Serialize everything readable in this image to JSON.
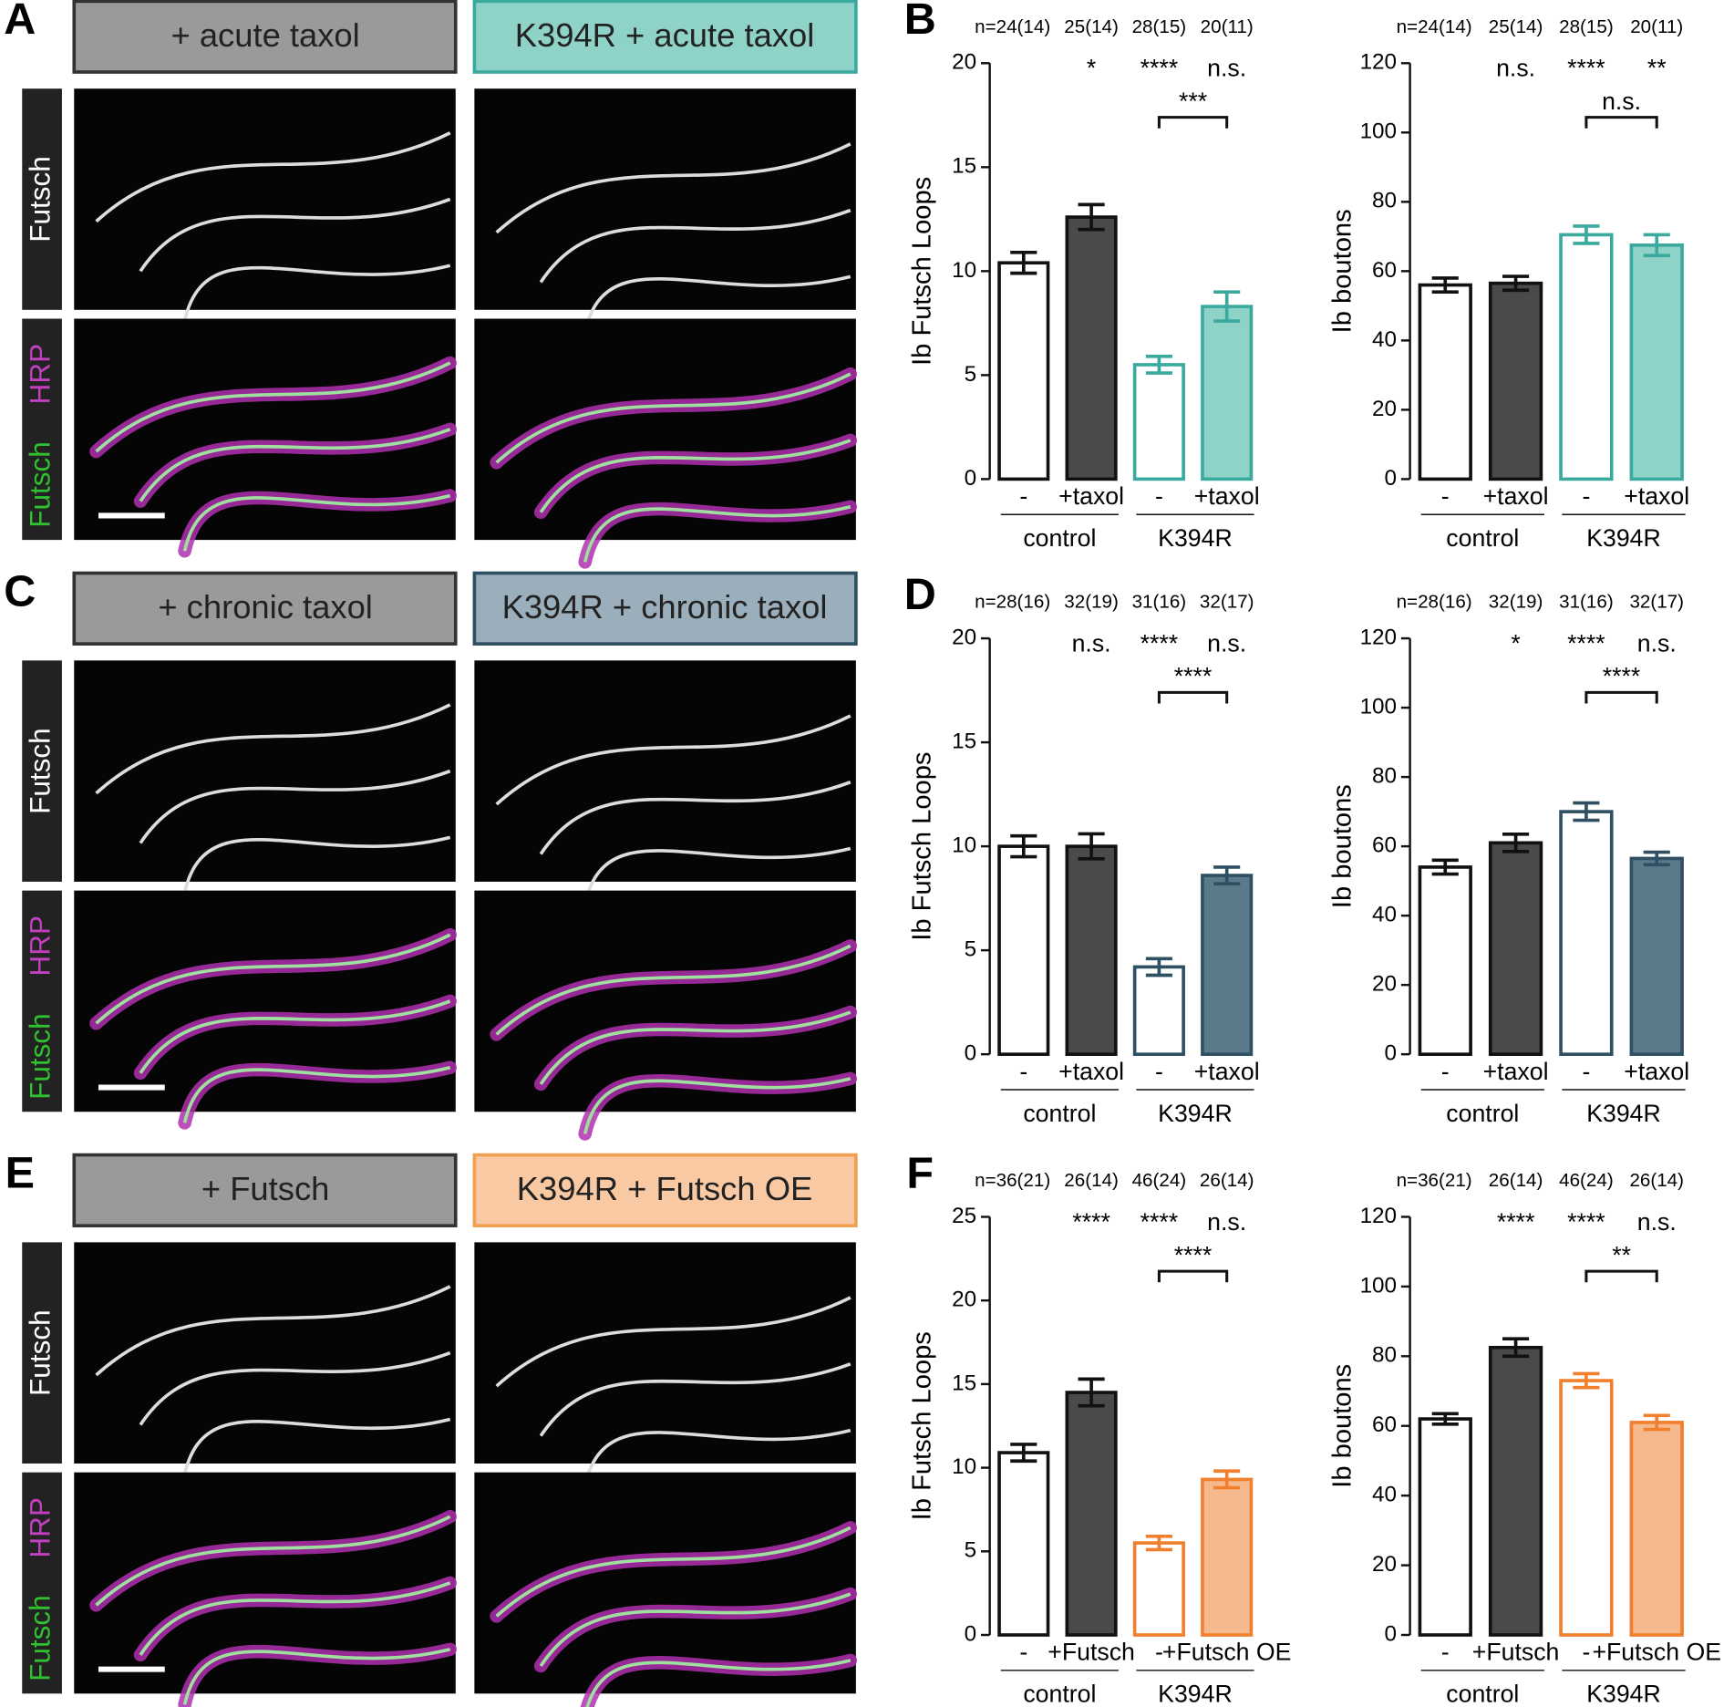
{
  "image_rows": [
    {
      "letter": "A",
      "headers": [
        "+ acute taxol",
        "K394R + acute taxol"
      ],
      "header_fill": "#8fd3c8",
      "header_stroke": "#3aaa9e",
      "channel_top": "Futsch",
      "channel_bottom": [
        "HRP",
        "Futsch"
      ]
    },
    {
      "letter": "C",
      "headers": [
        "+ chronic taxol",
        "K394R + chronic taxol"
      ],
      "header_fill": "#9aaebb",
      "header_stroke": "#2f4f63",
      "channel_top": "Futsch",
      "channel_bottom": [
        "HRP",
        "Futsch"
      ]
    },
    {
      "letter": "E",
      "headers": [
        "+ Futsch",
        "K394R + Futsch OE"
      ],
      "header_fill": "#f8c9a3",
      "header_stroke": "#f0a050",
      "channel_top": "Futsch",
      "channel_bottom": [
        "HRP",
        "Futsch"
      ]
    }
  ],
  "chart_data": [
    {
      "type": "bar",
      "letter": "B",
      "ylabel": "Ib Futsch Loops",
      "categories": [
        "-",
        "+taxol",
        "-",
        "+taxol"
      ],
      "groups": [
        "control",
        "K394R"
      ],
      "n_labels": [
        "n=24(14)",
        "25(14)",
        "28(15)",
        "20(11)"
      ],
      "significance": [
        null,
        "*",
        "****",
        "n.s."
      ],
      "bracket": "***",
      "values": [
        10.4,
        12.6,
        5.5,
        8.3
      ],
      "errors": [
        0.5,
        0.6,
        0.4,
        0.7
      ],
      "bar_colors": [
        "#ffffff",
        "#4a4a4a",
        "#ffffff",
        "#8fd3c8"
      ],
      "edge_colors": [
        "#111111",
        "#111111",
        "#3aaa9e",
        "#3aaa9e"
      ],
      "ylim": [
        0,
        20
      ],
      "yticks": [
        0,
        5,
        10,
        15,
        20
      ]
    },
    {
      "type": "bar",
      "ylabel": "Ib boutons",
      "categories": [
        "-",
        "+taxol",
        "-",
        "+taxol"
      ],
      "groups": [
        "control",
        "K394R"
      ],
      "n_labels": [
        "n=24(14)",
        "25(14)",
        "28(15)",
        "20(11)"
      ],
      "significance": [
        null,
        "n.s.",
        "****",
        "**"
      ],
      "bracket": "n.s.",
      "values": [
        56,
        56.5,
        70.5,
        67.5
      ],
      "errors": [
        2,
        2,
        2.5,
        3
      ],
      "bar_colors": [
        "#ffffff",
        "#4a4a4a",
        "#ffffff",
        "#8fd3c8"
      ],
      "edge_colors": [
        "#111111",
        "#111111",
        "#3aaa9e",
        "#3aaa9e"
      ],
      "ylim": [
        0,
        120
      ],
      "yticks": [
        0,
        20,
        40,
        60,
        80,
        100,
        120
      ]
    },
    {
      "type": "bar",
      "letter": "D",
      "ylabel": "Ib Futsch Loops",
      "categories": [
        "-",
        "+taxol",
        "-",
        "+taxol"
      ],
      "groups": [
        "control",
        "K394R"
      ],
      "n_labels": [
        "n=28(16)",
        "32(19)",
        "31(16)",
        "32(17)"
      ],
      "significance": [
        null,
        "n.s.",
        "****",
        "n.s."
      ],
      "bracket": "****",
      "values": [
        10,
        10,
        4.2,
        8.6
      ],
      "errors": [
        0.5,
        0.6,
        0.4,
        0.4
      ],
      "bar_colors": [
        "#ffffff",
        "#4a4a4a",
        "#ffffff",
        "#5b7a8a"
      ],
      "edge_colors": [
        "#111111",
        "#111111",
        "#2f4f63",
        "#2f4f63"
      ],
      "ylim": [
        0,
        20
      ],
      "yticks": [
        0,
        5,
        10,
        15,
        20
      ]
    },
    {
      "type": "bar",
      "ylabel": "Ib boutons",
      "categories": [
        "-",
        "+taxol",
        "-",
        "+taxol"
      ],
      "groups": [
        "control",
        "K394R"
      ],
      "n_labels": [
        "n=28(16)",
        "32(19)",
        "31(16)",
        "32(17)"
      ],
      "significance": [
        null,
        "*",
        "****",
        "n.s."
      ],
      "bracket": "****",
      "values": [
        54,
        61,
        70,
        56.5
      ],
      "errors": [
        2,
        2.5,
        2.5,
        1.8
      ],
      "bar_colors": [
        "#ffffff",
        "#4a4a4a",
        "#ffffff",
        "#5b7a8a"
      ],
      "edge_colors": [
        "#111111",
        "#111111",
        "#2f4f63",
        "#2f4f63"
      ],
      "ylim": [
        0,
        120
      ],
      "yticks": [
        0,
        20,
        40,
        60,
        80,
        100,
        120
      ]
    },
    {
      "type": "bar",
      "letter": "F",
      "ylabel": "Ib Futsch Loops",
      "categories": [
        "-",
        "+Futsch",
        "-",
        "+Futsch OE"
      ],
      "groups": [
        "control",
        "K394R"
      ],
      "n_labels": [
        "n=36(21)",
        "26(14)",
        "46(24)",
        "26(14)"
      ],
      "significance": [
        null,
        "****",
        "****",
        "n.s."
      ],
      "bracket": "****",
      "values": [
        10.9,
        14.5,
        5.5,
        9.3
      ],
      "errors": [
        0.5,
        0.8,
        0.4,
        0.5
      ],
      "bar_colors": [
        "#ffffff",
        "#4a4a4a",
        "#ffffff",
        "#f6b98d"
      ],
      "edge_colors": [
        "#111111",
        "#111111",
        "#f07f2e",
        "#f07f2e"
      ],
      "ylim": [
        0,
        25
      ],
      "yticks": [
        0,
        5,
        10,
        15,
        20,
        25
      ]
    },
    {
      "type": "bar",
      "ylabel": "Ib boutons",
      "categories": [
        "-",
        "+Futsch",
        "-",
        "+Futsch OE"
      ],
      "groups": [
        "control",
        "K394R"
      ],
      "n_labels": [
        "n=36(21)",
        "26(14)",
        "46(24)",
        "26(14)"
      ],
      "significance": [
        null,
        "****",
        "****",
        "n.s."
      ],
      "bracket": "**",
      "values": [
        62,
        82.5,
        73,
        61
      ],
      "errors": [
        1.5,
        2.5,
        2,
        2
      ],
      "bar_colors": [
        "#ffffff",
        "#4a4a4a",
        "#ffffff",
        "#f6b98d"
      ],
      "edge_colors": [
        "#111111",
        "#111111",
        "#f07f2e",
        "#f07f2e"
      ],
      "ylim": [
        0,
        120
      ],
      "yticks": [
        0,
        20,
        40,
        60,
        80,
        100,
        120
      ]
    }
  ]
}
